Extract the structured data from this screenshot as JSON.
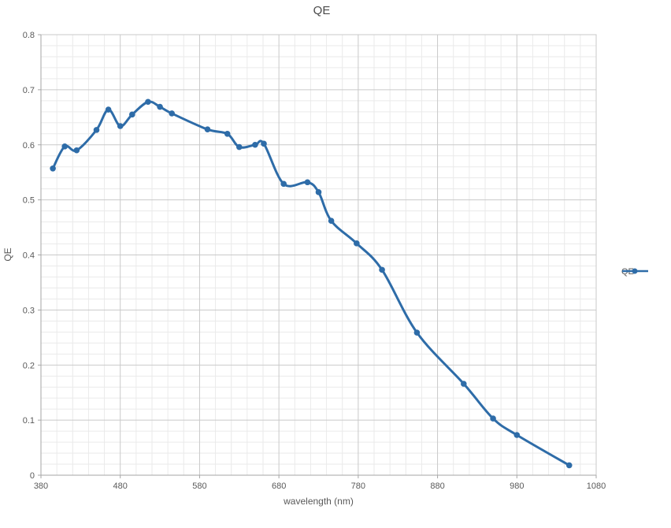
{
  "chart_data": {
    "type": "line",
    "title": "QE",
    "xlabel": "wavelength (nm)",
    "ylabel": "QE",
    "legend": [
      "QE"
    ],
    "legend_position": "right-middle",
    "grid": "major and minor gridlines on",
    "xlim": [
      380,
      1080
    ],
    "ylim": [
      0,
      0.8
    ],
    "xticks": [
      380,
      480,
      580,
      680,
      780,
      880,
      980,
      1080
    ],
    "x_minor_step": 20,
    "ytick_labels": [
      "0",
      "0.1",
      "0.2",
      "0.3",
      "0.4",
      "0.5",
      "0.6",
      "0.7",
      "0.8"
    ],
    "y_minor_step": 0.02,
    "series": [
      {
        "name": "QE",
        "marker": "circle",
        "smoothed": true,
        "points": [
          [
            395,
            0.557
          ],
          [
            410,
            0.597
          ],
          [
            425,
            0.59
          ],
          [
            450,
            0.627
          ],
          [
            465,
            0.664
          ],
          [
            480,
            0.634
          ],
          [
            495,
            0.655
          ],
          [
            515,
            0.678
          ],
          [
            530,
            0.669
          ],
          [
            545,
            0.657
          ],
          [
            590,
            0.628
          ],
          [
            615,
            0.62
          ],
          [
            630,
            0.596
          ],
          [
            650,
            0.6
          ],
          [
            661,
            0.602
          ],
          [
            686,
            0.529
          ],
          [
            716,
            0.532
          ],
          [
            730,
            0.514
          ],
          [
            746,
            0.462
          ],
          [
            778,
            0.421
          ],
          [
            810,
            0.373
          ],
          [
            854,
            0.259
          ],
          [
            913,
            0.166
          ],
          [
            950,
            0.103
          ],
          [
            980,
            0.073
          ],
          [
            1046,
            0.018
          ]
        ]
      }
    ],
    "colors": {
      "series": "#2e6ca8",
      "text": "#595959",
      "title_text": "#4a4a4a",
      "grid_major": "#c9c9c9",
      "grid_minor": "#eaeaea",
      "axis_line": "#a6a6a6",
      "plot_border": "#c9c9c9",
      "background": "#ffffff"
    }
  }
}
